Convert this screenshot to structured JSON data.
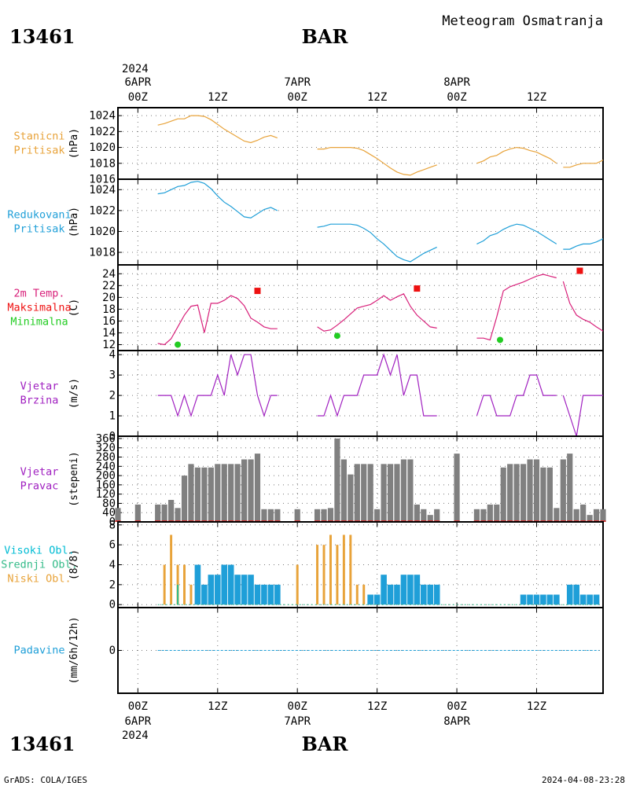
{
  "header": {
    "station": "13461",
    "name": "BAR",
    "title": "Meteogram Osmatranja"
  },
  "footer": {
    "credit": "GrADS: COLA/IGES",
    "timestamp": "2024-04-08-23:28"
  },
  "colors": {
    "station_pressure": "#e8a33a",
    "reduced_pressure": "#1f9fd8",
    "temperature": "#d8207a",
    "temp_max": "#ee1111",
    "temp_min": "#22cc22",
    "wind": "#a020c0",
    "direction_bars": "#808080",
    "cloud_high": "#00bcd4",
    "cloud_mid": "#33bb88",
    "cloud_low": "#e8a33a",
    "cloud_bar": "#1f9fd8",
    "precip": "#1f9fd8"
  },
  "time_axis": {
    "top_year": "2024",
    "top_labels": [
      {
        "top": "6APR",
        "bottom": "00Z",
        "hour": 0
      },
      {
        "top": "",
        "bottom": "12Z",
        "hour": 12
      },
      {
        "top": "7APR",
        "bottom": "00Z",
        "hour": 24
      },
      {
        "top": "",
        "bottom": "12Z",
        "hour": 36
      },
      {
        "top": "8APR",
        "bottom": "00Z",
        "hour": 48
      },
      {
        "top": "",
        "bottom": "12Z",
        "hour": 60
      }
    ],
    "bottom_year": "2024",
    "bottom_labels": [
      {
        "top": "00Z",
        "bottom": "6APR",
        "hour": 0
      },
      {
        "top": "12Z",
        "bottom": "",
        "hour": 12
      },
      {
        "top": "00Z",
        "bottom": "7APR",
        "hour": 24
      },
      {
        "top": "12Z",
        "bottom": "",
        "hour": 36
      },
      {
        "top": "00Z",
        "bottom": "8APR",
        "hour": 48
      },
      {
        "top": "12Z",
        "bottom": "",
        "hour": 60
      }
    ],
    "x_range_hours": [
      -3,
      70
    ]
  },
  "chart_data": [
    {
      "type": "line",
      "panel": "station_pressure",
      "label_lines": [
        "Stanicni",
        "Pritisak"
      ],
      "ylabel": "(hPa)",
      "ylim": [
        1016,
        1025
      ],
      "yticks": [
        1016,
        1018,
        1020,
        1022,
        1024
      ],
      "series": [
        {
          "x": [
            3,
            4,
            5,
            6,
            7,
            8,
            9,
            10,
            11,
            12,
            13,
            14,
            15,
            16,
            17,
            18,
            19,
            20,
            21
          ],
          "y": [
            1022.8,
            1023,
            1023.3,
            1023.6,
            1023.6,
            1024,
            1024,
            1023.9,
            1023.5,
            1022.9,
            1022.3,
            1021.8,
            1021.3,
            1020.8,
            1020.6,
            1020.9,
            1021.3,
            1021.5,
            1021.2
          ]
        },
        {
          "x": [
            27,
            28,
            29,
            30,
            31,
            32,
            33,
            34,
            35,
            36,
            37,
            38,
            39,
            40,
            41,
            42,
            43,
            44,
            45
          ],
          "y": [
            1019.8,
            1019.8,
            1020,
            1020,
            1020,
            1020,
            1019.9,
            1019.6,
            1019.1,
            1018.6,
            1018,
            1017.4,
            1016.9,
            1016.6,
            1016.5,
            1016.9,
            1017.2,
            1017.5,
            1017.8
          ]
        },
        {
          "x": [
            51,
            52,
            53,
            54,
            55,
            56,
            57,
            58,
            59,
            60,
            61,
            62,
            63
          ],
          "y": [
            1018,
            1018.3,
            1018.8,
            1019,
            1019.5,
            1019.8,
            1020,
            1019.9,
            1019.6,
            1019.4,
            1019,
            1018.6,
            1018
          ]
        },
        {
          "x": [
            64,
            65,
            66,
            67,
            68,
            69,
            70
          ],
          "y": [
            1017.5,
            1017.5,
            1017.8,
            1018,
            1018,
            1018,
            1018.4
          ]
        }
      ]
    },
    {
      "type": "line",
      "panel": "reduced_pressure",
      "label_lines": [
        "Redukovani",
        "Pritisak"
      ],
      "ylabel": "(hPa)",
      "ylim": [
        1016.8,
        1025
      ],
      "yticks": [
        1018,
        1020,
        1022,
        1024
      ],
      "series": [
        {
          "x": [
            3,
            4,
            5,
            6,
            7,
            8,
            9,
            10,
            11,
            12,
            13,
            14,
            15,
            16,
            17,
            18,
            19,
            20,
            21
          ],
          "y": [
            1023.6,
            1023.7,
            1024,
            1024.3,
            1024.4,
            1024.7,
            1024.8,
            1024.6,
            1024.1,
            1023.4,
            1022.8,
            1022.4,
            1021.9,
            1021.4,
            1021.3,
            1021.7,
            1022.1,
            1022.3,
            1022
          ]
        },
        {
          "x": [
            27,
            28,
            29,
            30,
            31,
            32,
            33,
            34,
            35,
            36,
            37,
            38,
            39,
            40,
            41,
            42,
            43,
            44,
            45
          ],
          "y": [
            1020.4,
            1020.5,
            1020.7,
            1020.7,
            1020.7,
            1020.7,
            1020.6,
            1020.3,
            1019.9,
            1019.3,
            1018.8,
            1018.2,
            1017.6,
            1017.3,
            1017.1,
            1017.5,
            1017.9,
            1018.2,
            1018.5
          ]
        },
        {
          "x": [
            51,
            52,
            53,
            54,
            55,
            56,
            57,
            58,
            59,
            60,
            61,
            62,
            63
          ],
          "y": [
            1018.8,
            1019.1,
            1019.6,
            1019.8,
            1020.2,
            1020.5,
            1020.7,
            1020.6,
            1020.3,
            1020,
            1019.6,
            1019.2,
            1018.8
          ]
        },
        {
          "x": [
            64,
            65,
            66,
            67,
            68,
            69,
            70
          ],
          "y": [
            1018.3,
            1018.3,
            1018.6,
            1018.8,
            1018.8,
            1019,
            1019.3
          ]
        }
      ]
    },
    {
      "type": "line",
      "panel": "temperature",
      "label_lines": [
        "2m Temp.",
        "Maksimalna",
        "Minimalna"
      ],
      "ylabel": "(C)",
      "ylim": [
        11,
        25.5
      ],
      "yticks": [
        12,
        14,
        16,
        18,
        20,
        22,
        24
      ],
      "series": [
        {
          "x": [
            3,
            4,
            5,
            6,
            7,
            8,
            9,
            10,
            11,
            12,
            13,
            14,
            15,
            16,
            17,
            18,
            19,
            20,
            21
          ],
          "y": [
            12.2,
            12,
            13,
            15,
            17,
            18.5,
            18.7,
            14,
            19,
            19,
            19.5,
            20.3,
            19.8,
            18.6,
            16.5,
            15.8,
            15,
            14.7,
            14.7
          ]
        },
        {
          "x": [
            27,
            28,
            29,
            30,
            31,
            32,
            33,
            34,
            35,
            36,
            37,
            38,
            39,
            40,
            41,
            42,
            43,
            44,
            45
          ],
          "y": [
            15,
            14.3,
            14.5,
            15.3,
            16.2,
            17.2,
            18.2,
            18.5,
            18.8,
            19.5,
            20.3,
            19.5,
            20.1,
            20.6,
            18.5,
            17,
            16,
            15,
            14.8
          ]
        },
        {
          "x": [
            51,
            52,
            53,
            54,
            55,
            56,
            57,
            58,
            59,
            60,
            61,
            62,
            63
          ],
          "y": [
            13.1,
            13.1,
            12.8,
            16.7,
            21.1,
            21.8,
            22.2,
            22.6,
            23.1,
            23.6,
            23.9,
            23.6,
            23.3
          ]
        },
        {
          "x": [
            64,
            65,
            66,
            67,
            68,
            69,
            70
          ],
          "y": [
            22.7,
            19,
            17,
            16.3,
            15.8,
            15,
            14.3
          ]
        }
      ],
      "maxima": {
        "x": [
          18,
          42,
          66.5
        ],
        "y": [
          21.1,
          21.5,
          24.5
        ]
      },
      "minima": {
        "x": [
          6,
          30,
          54.5
        ],
        "y": [
          12,
          13.5,
          12.8
        ]
      }
    },
    {
      "type": "line",
      "panel": "wind_speed",
      "label_lines": [
        "Vjetar",
        "Brzina"
      ],
      "ylabel": "(m/s)",
      "ylim": [
        0,
        4.2
      ],
      "yticks": [
        0,
        1,
        2,
        3,
        4
      ],
      "series": [
        {
          "x": [
            3,
            4,
            5,
            6,
            7,
            8,
            9,
            10,
            11,
            12,
            13,
            14,
            15,
            16,
            17,
            18,
            19,
            20,
            21
          ],
          "y": [
            2,
            2,
            2,
            1,
            2,
            1,
            2,
            2,
            2,
            3,
            2,
            4,
            3,
            4,
            4,
            2,
            1,
            2,
            2
          ]
        },
        {
          "x": [
            27,
            28,
            29,
            30,
            31,
            32,
            33,
            34,
            35,
            36,
            37,
            38,
            39,
            40,
            41,
            42,
            43,
            44,
            45
          ],
          "y": [
            1,
            1,
            2,
            1,
            2,
            2,
            2,
            3,
            3,
            3,
            4,
            3,
            4,
            2,
            3,
            3,
            1,
            1,
            1
          ]
        },
        {
          "x": [
            51,
            52,
            53,
            54,
            55,
            56,
            57,
            58,
            59,
            60,
            61,
            62,
            63
          ],
          "y": [
            1,
            2,
            2,
            1,
            1,
            1,
            2,
            2,
            3,
            3,
            2,
            2,
            2
          ]
        },
        {
          "x": [
            64,
            65,
            66,
            67,
            68,
            69,
            70
          ],
          "y": [
            2,
            1,
            0,
            2,
            2,
            2,
            2
          ]
        }
      ]
    },
    {
      "type": "bar",
      "panel": "wind_direction",
      "label_lines": [
        "Vjetar",
        "Pravac"
      ],
      "ylabel": "(stepeni)",
      "ylim": [
        0,
        370
      ],
      "yticks": [
        0,
        40,
        80,
        120,
        160,
        200,
        240,
        280,
        320,
        360
      ],
      "x": [
        -3,
        0,
        3,
        4,
        5,
        6,
        7,
        8,
        9,
        10,
        11,
        12,
        13,
        14,
        15,
        16,
        17,
        18,
        19,
        20,
        21,
        24,
        27,
        28,
        29,
        30,
        31,
        32,
        33,
        34,
        35,
        36,
        37,
        38,
        39,
        40,
        41,
        42,
        43,
        44,
        45,
        48,
        51,
        52,
        53,
        54,
        55,
        56,
        57,
        58,
        59,
        60,
        61,
        62,
        63,
        64,
        65,
        66,
        67,
        68,
        69,
        70
      ],
      "values": [
        60,
        75,
        75,
        75,
        95,
        60,
        200,
        250,
        235,
        235,
        235,
        250,
        250,
        250,
        250,
        270,
        270,
        295,
        55,
        55,
        55,
        55,
        55,
        55,
        60,
        360,
        270,
        205,
        250,
        250,
        250,
        55,
        250,
        250,
        250,
        270,
        270,
        75,
        55,
        30,
        55,
        295,
        55,
        55,
        75,
        75,
        235,
        250,
        250,
        250,
        270,
        270,
        235,
        235,
        60,
        270,
        295,
        55,
        75,
        30,
        55,
        55
      ]
    },
    {
      "type": "bar",
      "panel": "clouds",
      "label_lines": [
        "Visoki Obl.",
        "Srednji Obl.",
        "Niski Obl."
      ],
      "ylabel": "(8/8)",
      "ylim": [
        -0.3,
        8.3
      ],
      "yticks": [
        0,
        2,
        4,
        6,
        8
      ],
      "series": [
        {
          "name": "Niski Obl.",
          "x": [
            4,
            5,
            6,
            7,
            8,
            9,
            10,
            11,
            12,
            13,
            14,
            15,
            16,
            17,
            18,
            19,
            24,
            27,
            28,
            29,
            30,
            31,
            32,
            33,
            34
          ],
          "values": [
            4,
            7,
            4,
            4,
            2,
            2,
            1,
            1,
            1,
            1,
            1,
            1,
            1,
            1,
            0,
            0,
            4,
            6,
            6,
            7,
            6,
            7,
            7,
            2,
            2
          ]
        },
        {
          "name": "Visoki Obl.",
          "x": [
            9,
            10,
            11,
            12,
            13,
            14,
            15,
            16,
            17,
            18,
            19,
            20,
            21,
            35,
            36,
            37,
            38,
            39,
            40,
            41,
            42,
            43,
            44,
            45,
            58,
            59,
            60,
            61,
            62,
            63,
            65,
            66,
            67,
            68,
            69
          ],
          "values": [
            4,
            2,
            3,
            3,
            4,
            4,
            3,
            3,
            3,
            2,
            2,
            2,
            2,
            1,
            1,
            3,
            2,
            2,
            3,
            3,
            3,
            2,
            2,
            2,
            1,
            1,
            1,
            1,
            1,
            1,
            2,
            2,
            1,
            1,
            1
          ]
        },
        {
          "name": "Srednji Obl.",
          "x": [
            6
          ],
          "values": [
            2
          ]
        }
      ]
    },
    {
      "type": "bar",
      "panel": "precip",
      "label_lines": [
        "Padavine"
      ],
      "ylabel": "(mm/6h/12h)",
      "ylim": [
        -1,
        1
      ],
      "yticks": [
        0
      ],
      "values": [
        0
      ]
    }
  ]
}
